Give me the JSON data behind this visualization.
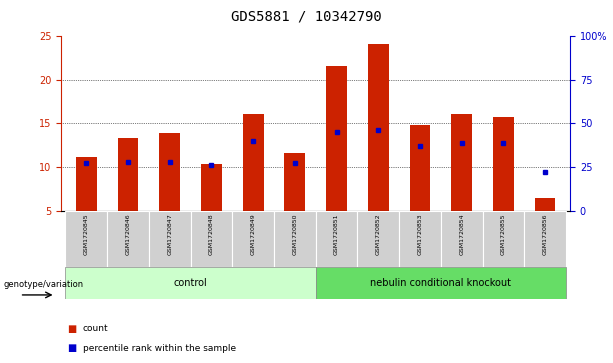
{
  "title": "GDS5881 / 10342790",
  "samples": [
    "GSM1720845",
    "GSM1720846",
    "GSM1720847",
    "GSM1720848",
    "GSM1720849",
    "GSM1720850",
    "GSM1720851",
    "GSM1720852",
    "GSM1720853",
    "GSM1720854",
    "GSM1720855",
    "GSM1720856"
  ],
  "counts": [
    11.1,
    13.3,
    13.9,
    10.3,
    16.1,
    11.6,
    21.6,
    24.1,
    14.8,
    16.1,
    15.7,
    6.4
  ],
  "percentile_ranks": [
    27,
    28,
    28,
    26,
    40,
    27,
    45,
    46,
    37,
    39,
    39,
    22
  ],
  "ylim_left": [
    5,
    25
  ],
  "ylim_right": [
    0,
    100
  ],
  "yticks_left": [
    5,
    10,
    15,
    20,
    25
  ],
  "yticks_right": [
    0,
    25,
    50,
    75,
    100
  ],
  "bar_color": "#cc2200",
  "dot_color": "#0000cc",
  "grid_color": "#000000",
  "bg_color": "#ffffff",
  "control_group": [
    0,
    1,
    2,
    3,
    4,
    5
  ],
  "knockout_group": [
    6,
    7,
    8,
    9,
    10,
    11
  ],
  "control_label": "control",
  "knockout_label": "nebulin conditional knockout",
  "control_bg": "#ccffcc",
  "knockout_bg": "#66dd66",
  "genotype_label": "genotype/variation",
  "legend_count": "count",
  "legend_pct": "percentile rank within the sample",
  "title_fontsize": 10,
  "axis_fontsize": 8,
  "tick_fontsize": 7
}
